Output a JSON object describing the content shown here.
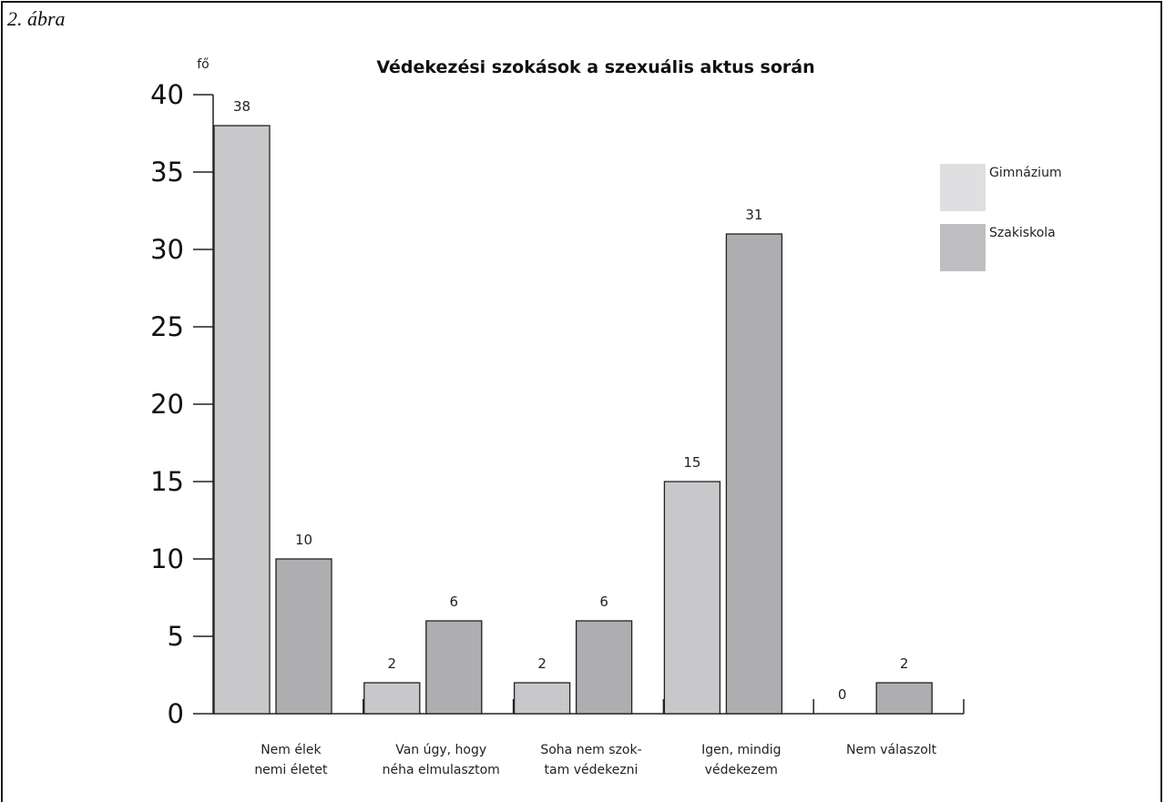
{
  "figure_label": "2. ábra",
  "chart_data": {
    "type": "bar",
    "title": "Védekezési szokások a szexuális aktus során",
    "ylabel": "fő",
    "xlabel": "",
    "ylim": [
      0,
      40
    ],
    "yticks": [
      "0",
      "5",
      "10",
      "15",
      "20",
      "25",
      "30",
      "35",
      "40"
    ],
    "categories": [
      [
        "Nem élek",
        "nemi életet"
      ],
      [
        "Van úgy, hogy",
        "néha elmulasztom"
      ],
      [
        "Soha nem szok-",
        "tam védekezni"
      ],
      [
        "Igen, mindig",
        "védekezem"
      ],
      [
        "Nem válaszolt"
      ]
    ],
    "series": [
      {
        "name": "Gimnázium",
        "values": [
          38,
          2,
          2,
          15,
          0
        ],
        "color": "#c8c8ca",
        "legend_color": "#dfdfe1"
      },
      {
        "name": "Szakiskola",
        "values": [
          10,
          6,
          6,
          31,
          2
        ],
        "color": "#aeaeb1",
        "legend_color": "#bfbfc2"
      }
    ],
    "legend_position": "top-right",
    "grid": false
  }
}
